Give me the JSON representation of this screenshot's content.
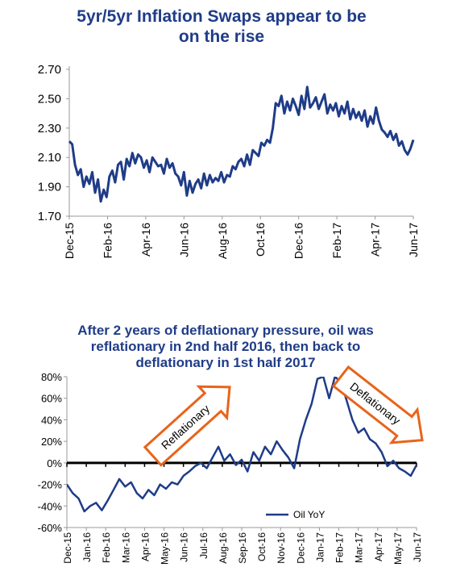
{
  "chart_data": [
    {
      "type": "line",
      "title": "5yr/5yr Inflation Swaps appear to be\non the rise",
      "xlabel": "",
      "ylabel": "",
      "ylim": [
        1.7,
        2.7
      ],
      "yticks": [
        "1.70",
        "1.90",
        "2.10",
        "2.30",
        "2.50",
        "2.70"
      ],
      "xticks": [
        "Dec-15",
        "Feb-16",
        "Apr-16",
        "Jun-16",
        "Aug-16",
        "Oct-16",
        "Dec-16",
        "Feb-17",
        "Apr-17",
        "Jun-17"
      ],
      "series": [
        {
          "color": "#1f3c88",
          "x": [
            0,
            0.15,
            0.3,
            0.45,
            0.6,
            0.75,
            0.9,
            1.05,
            1.2,
            1.35,
            1.5,
            1.65,
            1.8,
            1.95,
            2.1,
            2.25,
            2.4,
            2.55,
            2.7,
            2.85,
            3.0,
            3.15,
            3.3,
            3.45,
            3.6,
            3.75,
            3.9,
            4.05,
            4.2,
            4.35,
            4.5,
            4.65,
            4.8,
            4.95,
            5.1,
            5.25,
            5.4,
            5.55,
            5.7,
            5.85,
            6.0,
            6.15,
            6.3,
            6.45,
            6.6,
            6.75,
            6.9,
            7.05,
            7.2,
            7.35,
            7.5,
            7.65,
            7.8,
            7.95,
            8.1,
            8.25,
            8.4,
            8.55,
            8.7,
            8.85,
            9.0,
            9.15,
            9.3,
            9.45,
            9.6,
            9.75,
            9.9,
            10.05,
            10.2,
            10.35,
            10.5,
            10.65,
            10.8,
            10.95,
            11.1,
            11.25,
            11.4,
            11.55,
            11.7,
            11.85,
            12.0,
            12.15,
            12.3,
            12.45,
            12.6,
            12.75,
            12.9,
            13.05,
            13.2,
            13.35,
            13.5,
            13.65,
            13.8,
            13.95,
            14.1,
            14.25,
            14.4,
            14.55,
            14.7,
            14.85,
            15.0,
            15.15,
            15.3,
            15.45,
            15.6,
            15.75,
            15.9,
            16.05,
            16.2,
            16.35,
            16.5,
            16.65,
            16.8,
            16.95,
            17.1,
            17.25,
            17.4,
            17.55,
            17.7,
            17.85,
            18.0
          ],
          "y": [
            2.21,
            2.19,
            2.05,
            1.98,
            2.02,
            1.9,
            1.97,
            1.92,
            2.0,
            1.86,
            1.95,
            1.8,
            1.88,
            1.83,
            1.97,
            2.01,
            1.93,
            2.05,
            2.07,
            1.95,
            2.09,
            2.04,
            2.13,
            2.06,
            2.12,
            2.1,
            2.03,
            2.08,
            2.0,
            2.1,
            2.07,
            2.04,
            2.05,
            1.99,
            2.09,
            2.03,
            2.06,
            1.99,
            1.97,
            1.91,
            2.0,
            1.84,
            1.94,
            1.86,
            1.92,
            1.95,
            1.89,
            1.99,
            1.91,
            1.98,
            1.93,
            1.96,
            1.94,
            2.0,
            1.93,
            1.98,
            1.97,
            2.04,
            2.02,
            2.07,
            2.09,
            2.04,
            2.12,
            2.05,
            2.15,
            2.13,
            2.11,
            2.2,
            2.18,
            2.22,
            2.2,
            2.3,
            2.47,
            2.45,
            2.52,
            2.4,
            2.48,
            2.42,
            2.5,
            2.45,
            2.39,
            2.52,
            2.43,
            2.58,
            2.44,
            2.47,
            2.51,
            2.43,
            2.48,
            2.53,
            2.4,
            2.46,
            2.42,
            2.47,
            2.38,
            2.45,
            2.4,
            2.48,
            2.36,
            2.43,
            2.37,
            2.41,
            2.35,
            2.42,
            2.31,
            2.38,
            2.33,
            2.44,
            2.35,
            2.29,
            2.27,
            2.24,
            2.28,
            2.22,
            2.26,
            2.18,
            2.21,
            2.15,
            2.12,
            2.16,
            2.22
          ]
        }
      ]
    },
    {
      "type": "line",
      "title": "After 2 years of deflationary pressure, oil was\nreflationary in 2nd half 2016, then back to\ndeflationary in 1st half 2017",
      "xlabel": "",
      "ylabel": "",
      "ylim": [
        -60,
        80
      ],
      "yticks": [
        "-60%",
        "-40%",
        "-20%",
        "0%",
        "20%",
        "40%",
        "60%",
        "80%"
      ],
      "xticks": [
        "Dec-15",
        "Jan-16",
        "Feb-16",
        "Mar-16",
        "Apr-16",
        "May-16",
        "Jun-16",
        "Jul-16",
        "Aug-16",
        "Sep-16",
        "Oct-16",
        "Nov-16",
        "Dec-16",
        "Jan-17",
        "Feb-17",
        "Mar-17",
        "Apr-17",
        "May-17",
        "Jun-17"
      ],
      "annotations": [
        "Reflationary",
        "Deflationary"
      ],
      "legend": "top-right-bottom",
      "series": [
        {
          "name": "Oil YoY",
          "color": "#1f3c88",
          "x": [
            0,
            0.3,
            0.6,
            0.9,
            1.2,
            1.5,
            1.8,
            2.1,
            2.4,
            2.7,
            3.0,
            3.3,
            3.6,
            3.9,
            4.2,
            4.5,
            4.8,
            5.1,
            5.4,
            5.7,
            6.0,
            6.3,
            6.6,
            6.9,
            7.2,
            7.5,
            7.8,
            8.1,
            8.4,
            8.7,
            9.0,
            9.3,
            9.6,
            9.9,
            10.2,
            10.5,
            10.8,
            11.1,
            11.4,
            11.7,
            12.0,
            12.3,
            12.6,
            12.9,
            13.2,
            13.5,
            13.8,
            14.1,
            14.4,
            14.7,
            15.0,
            15.3,
            15.6,
            15.9,
            16.2,
            16.5,
            16.8,
            17.1,
            17.4,
            17.7,
            18.0
          ],
          "y": [
            -20,
            -28,
            -33,
            -45,
            -40,
            -37,
            -44,
            -35,
            -25,
            -15,
            -22,
            -18,
            -28,
            -33,
            -25,
            -30,
            -20,
            -24,
            -18,
            -20,
            -12,
            -8,
            -3,
            0,
            -5,
            5,
            15,
            2,
            8,
            -2,
            3,
            -8,
            10,
            2,
            15,
            8,
            20,
            12,
            5,
            -5,
            22,
            40,
            55,
            78,
            80,
            60,
            80,
            75,
            58,
            40,
            28,
            32,
            22,
            18,
            10,
            -3,
            2,
            -5,
            -8,
            -12,
            -2
          ]
        }
      ]
    }
  ]
}
